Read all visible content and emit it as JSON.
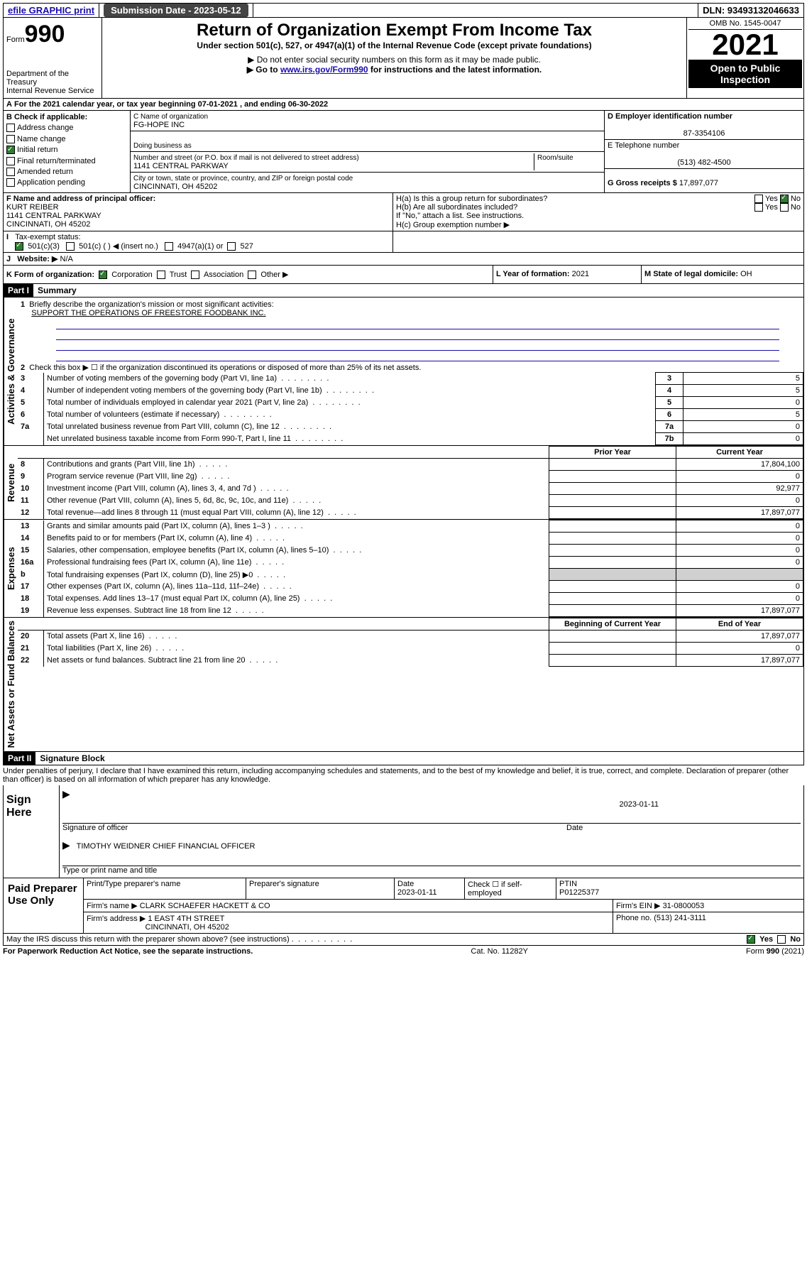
{
  "topbar": {
    "efile": "efile GRAPHIC print",
    "subdate_lbl": "Submission Date - 2023-05-12",
    "dln_lbl": "DLN: 93493132046633"
  },
  "header": {
    "form_word": "Form",
    "form_num": "990",
    "dept": "Department of the Treasury",
    "irs": "Internal Revenue Service",
    "title": "Return of Organization Exempt From Income Tax",
    "sub1": "Under section 501(c), 527, or 4947(a)(1) of the Internal Revenue Code (except private foundations)",
    "sub2": "▶ Do not enter social security numbers on this form as it may be made public.",
    "sub3_pre": "▶ Go to ",
    "sub3_link": "www.irs.gov/Form990",
    "sub3_post": " for instructions and the latest information.",
    "omb": "OMB No. 1545-0047",
    "year": "2021",
    "openpub": "Open to Public Inspection"
  },
  "lineA": {
    "text_pre": "For the 2021 calendar year, or tax year beginning ",
    "beg": "07-01-2021",
    "mid": " , and ending ",
    "end": "06-30-2022"
  },
  "boxB": {
    "label": "B Check if applicable:",
    "opts": [
      "Address change",
      "Name change",
      "Initial return",
      "Final return/terminated",
      "Amended return",
      "Application pending"
    ],
    "checked_idx": 2
  },
  "boxC": {
    "name_lbl": "C Name of organization",
    "name": "FG-HOPE INC",
    "dba_lbl": "Doing business as",
    "street_lbl": "Number and street (or P.O. box if mail is not delivered to street address)",
    "room_lbl": "Room/suite",
    "street": "1141 CENTRAL PARKWAY",
    "city_lbl": "City or town, state or province, country, and ZIP or foreign postal code",
    "city": "CINCINNATI, OH  45202"
  },
  "boxD": {
    "lbl": "D Employer identification number",
    "val": "87-3354106"
  },
  "boxE": {
    "lbl": "E Telephone number",
    "val": "(513) 482-4500"
  },
  "boxG": {
    "lbl": "G Gross receipts $",
    "val": "17,897,077"
  },
  "boxF": {
    "lbl": "F Name and address of principal officer:",
    "name": "KURT REIBER",
    "addr1": "1141 CENTRAL PARKWAY",
    "addr2": "CINCINNATI, OH  45202"
  },
  "boxH": {
    "ha": "H(a)  Is this a group return for subordinates?",
    "hb": "H(b)  Are all subordinates included?",
    "hb_note": "If \"No,\" attach a list. See instructions.",
    "hc": "H(c)  Group exemption number ▶",
    "yes": "Yes",
    "no": "No"
  },
  "boxI": {
    "lbl": "Tax-exempt status:",
    "opts": [
      "501(c)(3)",
      "501(c) (  ) ◀ (insert no.)",
      "4947(a)(1) or",
      "527"
    ]
  },
  "boxJ": {
    "lbl": "Website: ▶",
    "val": "N/A"
  },
  "boxK": {
    "lbl": "K Form of organization:",
    "opts": [
      "Corporation",
      "Trust",
      "Association",
      "Other ▶"
    ]
  },
  "boxL": {
    "lbl": "L Year of formation:",
    "val": "2021"
  },
  "boxM": {
    "lbl": "M State of legal domicile:",
    "val": "OH"
  },
  "part1": {
    "hdr": "Part I",
    "title": "Summary",
    "q1": "Briefly describe the organization's mission or most significant activities:",
    "q1_ans": "SUPPORT THE OPERATIONS OF FREESTORE FOODBANK INC.",
    "q2": "Check this box ▶ ☐  if the organization discontinued its operations or disposed of more than 25% of its net assets.",
    "sidelabels": {
      "gov": "Activities & Governance",
      "rev": "Revenue",
      "exp": "Expenses",
      "net": "Net Assets or Fund Balances"
    },
    "col_prior": "Prior Year",
    "col_curr": "Current Year",
    "col_beg": "Beginning of Current Year",
    "col_end": "End of Year",
    "rows_gov": [
      {
        "n": "3",
        "t": "Number of voting members of the governing body (Part VI, line 1a)",
        "box": "3",
        "v": "5"
      },
      {
        "n": "4",
        "t": "Number of independent voting members of the governing body (Part VI, line 1b)",
        "box": "4",
        "v": "5"
      },
      {
        "n": "5",
        "t": "Total number of individuals employed in calendar year 2021 (Part V, line 2a)",
        "box": "5",
        "v": "0"
      },
      {
        "n": "6",
        "t": "Total number of volunteers (estimate if necessary)",
        "box": "6",
        "v": "5"
      },
      {
        "n": "7a",
        "t": "Total unrelated business revenue from Part VIII, column (C), line 12",
        "box": "7a",
        "v": "0"
      },
      {
        "n": "",
        "t": "Net unrelated business taxable income from Form 990-T, Part I, line 11",
        "box": "7b",
        "v": "0"
      }
    ],
    "rows_rev": [
      {
        "n": "8",
        "t": "Contributions and grants (Part VIII, line 1h)",
        "p": "",
        "c": "17,804,100"
      },
      {
        "n": "9",
        "t": "Program service revenue (Part VIII, line 2g)",
        "p": "",
        "c": "0"
      },
      {
        "n": "10",
        "t": "Investment income (Part VIII, column (A), lines 3, 4, and 7d )",
        "p": "",
        "c": "92,977"
      },
      {
        "n": "11",
        "t": "Other revenue (Part VIII, column (A), lines 5, 6d, 8c, 9c, 10c, and 11e)",
        "p": "",
        "c": "0"
      },
      {
        "n": "12",
        "t": "Total revenue—add lines 8 through 11 (must equal Part VIII, column (A), line 12)",
        "p": "",
        "c": "17,897,077"
      }
    ],
    "rows_exp": [
      {
        "n": "13",
        "t": "Grants and similar amounts paid (Part IX, column (A), lines 1–3 )",
        "p": "",
        "c": "0"
      },
      {
        "n": "14",
        "t": "Benefits paid to or for members (Part IX, column (A), line 4)",
        "p": "",
        "c": "0"
      },
      {
        "n": "15",
        "t": "Salaries, other compensation, employee benefits (Part IX, column (A), lines 5–10)",
        "p": "",
        "c": "0"
      },
      {
        "n": "16a",
        "t": "Professional fundraising fees (Part IX, column (A), line 11e)",
        "p": "",
        "c": "0"
      },
      {
        "n": "b",
        "t": "Total fundraising expenses (Part IX, column (D), line 25) ▶0",
        "p": "shade",
        "c": "shade"
      },
      {
        "n": "17",
        "t": "Other expenses (Part IX, column (A), lines 11a–11d, 11f–24e)",
        "p": "",
        "c": "0"
      },
      {
        "n": "18",
        "t": "Total expenses. Add lines 13–17 (must equal Part IX, column (A), line 25)",
        "p": "",
        "c": "0"
      },
      {
        "n": "19",
        "t": "Revenue less expenses. Subtract line 18 from line 12",
        "p": "",
        "c": "17,897,077"
      }
    ],
    "rows_net": [
      {
        "n": "20",
        "t": "Total assets (Part X, line 16)",
        "p": "",
        "c": "17,897,077"
      },
      {
        "n": "21",
        "t": "Total liabilities (Part X, line 26)",
        "p": "",
        "c": "0"
      },
      {
        "n": "22",
        "t": "Net assets or fund balances. Subtract line 21 from line 20",
        "p": "",
        "c": "17,897,077"
      }
    ]
  },
  "part2": {
    "hdr": "Part II",
    "title": "Signature Block",
    "decl": "Under penalties of perjury, I declare that I have examined this return, including accompanying schedules and statements, and to the best of my knowledge and belief, it is true, correct, and complete. Declaration of preparer (other than officer) is based on all information of which preparer has any knowledge."
  },
  "sign": {
    "lbl": "Sign Here",
    "sig_lbl": "Signature of officer",
    "date_lbl": "Date",
    "date_val": "2023-01-11",
    "name": "TIMOTHY WEIDNER  CHIEF FINANCIAL OFFICER",
    "name_lbl": "Type or print name and title"
  },
  "paid": {
    "lbl": "Paid Preparer Use Only",
    "h_name": "Print/Type preparer's name",
    "h_sig": "Preparer's signature",
    "h_date": "Date",
    "date_val": "2023-01-11",
    "h_check": "Check ☐ if self-employed",
    "h_ptin": "PTIN",
    "ptin_val": "P01225377",
    "firm_lbl": "Firm's name    ▶",
    "firm_val": "CLARK SCHAEFER HACKETT & CO",
    "ein_lbl": "Firm's EIN ▶",
    "ein_val": "31-0800053",
    "addr_lbl": "Firm's address ▶",
    "addr_val1": "1 EAST 4TH STREET",
    "addr_val2": "CINCINNATI, OH  45202",
    "phone_lbl": "Phone no.",
    "phone_val": "(513) 241-3111"
  },
  "discuss": {
    "q": "May the IRS discuss this return with the preparer shown above? (see instructions)",
    "yes": "Yes",
    "no": "No"
  },
  "footer": {
    "left": "For Paperwork Reduction Act Notice, see the separate instructions.",
    "mid": "Cat. No. 11282Y",
    "right": "Form 990 (2021)"
  }
}
